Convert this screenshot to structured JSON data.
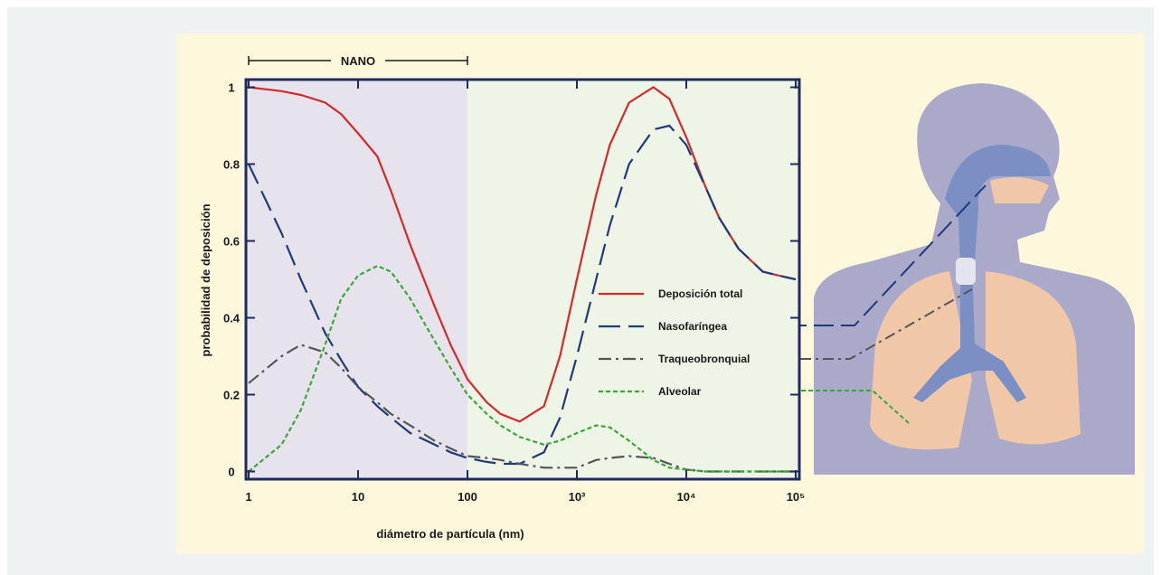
{
  "chart_data": {
    "type": "line",
    "x_label": "diámetro de partícula (nm)",
    "y_label": "probabilidad de deposición",
    "xscale": "log",
    "xlim": [
      1,
      100000
    ],
    "ylim": [
      -0.02,
      1.02
    ],
    "xticks": [
      1,
      10,
      100,
      {
        "value": 1000,
        "label": "10³"
      },
      {
        "value": 10000,
        "label": "10⁴"
      },
      {
        "value": 100000,
        "label": "10⁵"
      }
    ],
    "yticks": [
      0,
      0.2,
      0.4,
      0.6,
      0.8,
      1
    ],
    "annotations": [
      {
        "text": "NANO",
        "x": [
          1,
          100
        ]
      }
    ],
    "x": [
      1,
      2,
      3,
      5,
      7,
      10,
      15,
      20,
      30,
      50,
      70,
      100,
      150,
      200,
      300,
      500,
      700,
      1000,
      1500,
      2000,
      3000,
      5000,
      7000,
      10000,
      15000,
      20000,
      30000,
      50000,
      70000,
      100000
    ],
    "series": [
      {
        "name": "Deposición total",
        "color": "#d42a2a",
        "style": "solid",
        "values": [
          1.0,
          0.99,
          0.98,
          0.96,
          0.93,
          0.88,
          0.82,
          0.73,
          0.59,
          0.43,
          0.33,
          0.24,
          0.18,
          0.15,
          0.13,
          0.17,
          0.3,
          0.5,
          0.72,
          0.85,
          0.96,
          1.0,
          0.97,
          0.87,
          0.74,
          0.66,
          0.58,
          0.52,
          0.51,
          0.5
        ]
      },
      {
        "name": "Nasofaríngea",
        "color": "#1f3a7a",
        "style": "dashed",
        "values": [
          0.8,
          0.62,
          0.5,
          0.36,
          0.29,
          0.22,
          0.17,
          0.14,
          0.1,
          0.07,
          0.05,
          0.035,
          0.025,
          0.02,
          0.02,
          0.05,
          0.14,
          0.3,
          0.5,
          0.64,
          0.8,
          0.89,
          0.9,
          0.85,
          0.74,
          0.66,
          0.58,
          0.52,
          0.51,
          0.5
        ]
      },
      {
        "name": "Traqueobronquial",
        "color": "#555555",
        "style": "dashdot",
        "values": [
          0.23,
          0.3,
          0.33,
          0.31,
          0.27,
          0.22,
          0.18,
          0.15,
          0.12,
          0.08,
          0.06,
          0.04,
          0.035,
          0.03,
          0.02,
          0.01,
          0.01,
          0.01,
          0.03,
          0.035,
          0.04,
          0.035,
          0.02,
          0.005,
          0,
          0,
          0,
          0,
          0,
          0
        ]
      },
      {
        "name": "Alveolar",
        "color": "#3aa63a",
        "style": "dotted",
        "values": [
          0,
          0.07,
          0.16,
          0.33,
          0.45,
          0.51,
          0.535,
          0.52,
          0.45,
          0.34,
          0.27,
          0.2,
          0.15,
          0.12,
          0.09,
          0.07,
          0.08,
          0.1,
          0.12,
          0.115,
          0.08,
          0.03,
          0.01,
          0.005,
          0,
          0,
          0,
          0,
          0,
          0
        ]
      }
    ]
  }
}
